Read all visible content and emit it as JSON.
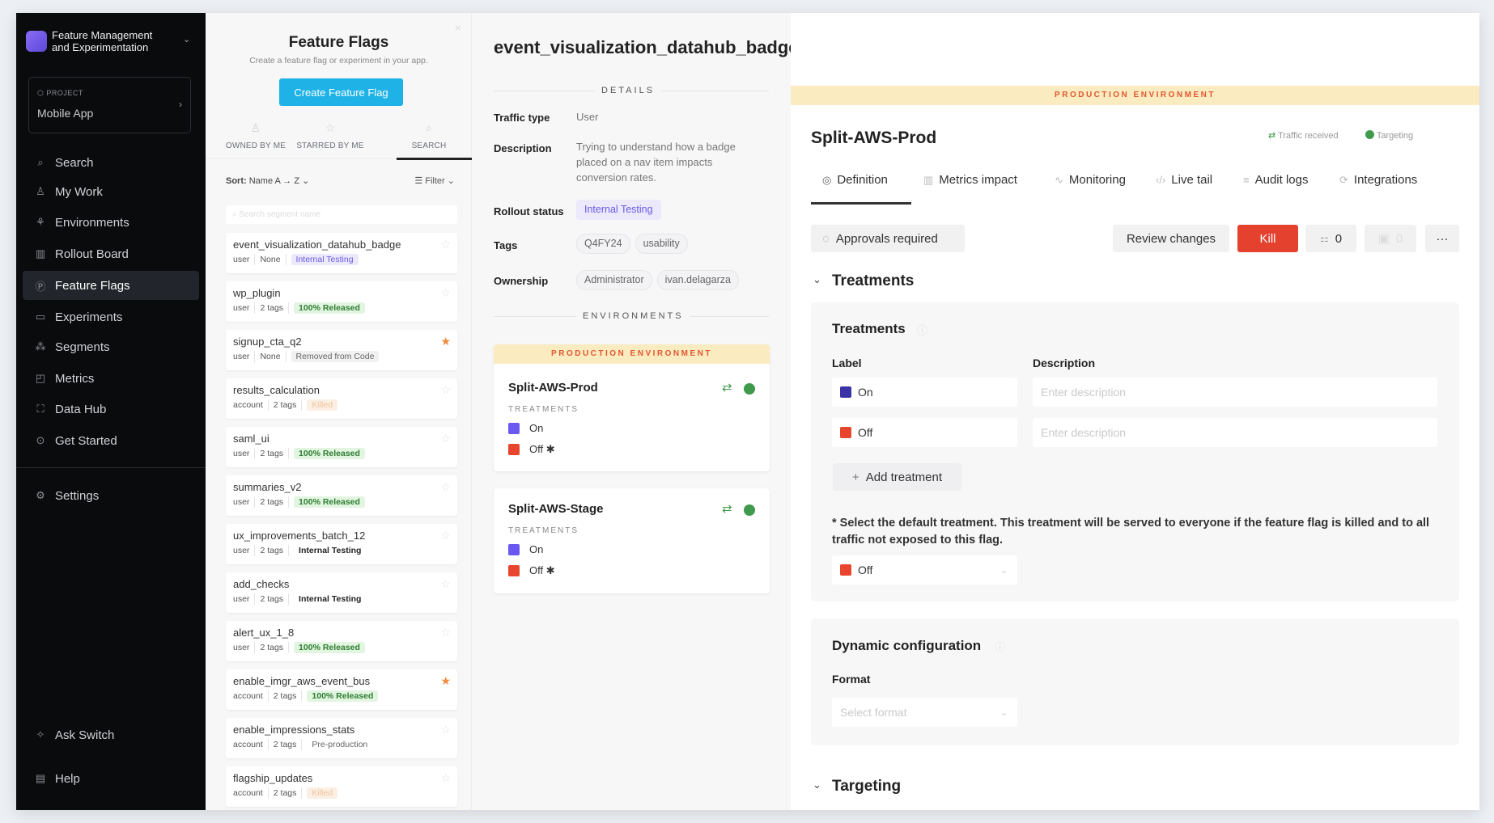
{
  "sidebar": {
    "app_title_line1": "Feature Management",
    "app_title_line2": "and Experimentation",
    "project_label": "PROJECT",
    "project_name": "Mobile App",
    "items": [
      {
        "label": "Search",
        "icon": "search-icon",
        "glyph": "⌕"
      },
      {
        "label": "My Work",
        "icon": "user-icon",
        "glyph": "♙"
      },
      {
        "label": "Environments",
        "icon": "environments-icon",
        "glyph": "⚘"
      },
      {
        "label": "Rollout Board",
        "icon": "board-icon",
        "glyph": "▥"
      },
      {
        "label": "Feature Flags",
        "icon": "flag-icon",
        "glyph": "Ⓟ",
        "active": true
      },
      {
        "label": "Experiments",
        "icon": "experiments-icon",
        "glyph": "▭"
      },
      {
        "label": "Segments",
        "icon": "segments-icon",
        "glyph": "⁂"
      },
      {
        "label": "Metrics",
        "icon": "metrics-icon",
        "glyph": "◰"
      },
      {
        "label": "Data Hub",
        "icon": "data-hub-icon",
        "glyph": "⛶"
      },
      {
        "label": "Get Started",
        "icon": "play-icon",
        "glyph": "⊙"
      }
    ],
    "settings": "Settings",
    "ask": "Ask Switch",
    "help": "Help"
  },
  "list": {
    "title": "Feature Flags",
    "subtitle": "Create a feature flag or experiment in your app.",
    "create_button": "Create Feature Flag",
    "tabs": [
      "OWNED BY ME",
      "STARRED BY ME",
      "SEARCH"
    ],
    "sort_label": "Sort:",
    "sort_value": "Name  A → Z",
    "filter": "Filter",
    "search_placeholder": "Search segment name",
    "flags": [
      {
        "name": "event_visualization_datahub_badge",
        "type": "user",
        "tags": "None",
        "status": "Internal Testing",
        "style": "internal",
        "starred": false
      },
      {
        "name": "wp_plugin",
        "type": "user",
        "tags": "2 tags",
        "status": "100% Released",
        "style": "released",
        "starred": false
      },
      {
        "name": "signup_cta_q2",
        "type": "user",
        "tags": "None",
        "status": "Removed from Code",
        "style": "removed",
        "starred": true
      },
      {
        "name": "results_calculation",
        "type": "account",
        "tags": "2 tags",
        "status": "Killed",
        "style": "killed",
        "starred": false
      },
      {
        "name": "saml_ui",
        "type": "user",
        "tags": "2 tags",
        "status": "100% Released",
        "style": "released",
        "starred": false
      },
      {
        "name": "summaries_v2",
        "type": "user",
        "tags": "2 tags",
        "status": "100% Released",
        "style": "released",
        "starred": false
      },
      {
        "name": "ux_improvements_batch_12",
        "type": "user",
        "tags": "2 tags",
        "status": "Internal Testing",
        "style": "internal-plain",
        "starred": false
      },
      {
        "name": "add_checks",
        "type": "user",
        "tags": "2 tags",
        "status": "Internal Testing",
        "style": "internal-plain",
        "starred": false
      },
      {
        "name": "alert_ux_1_8",
        "type": "user",
        "tags": "2 tags",
        "status": "100% Released",
        "style": "released",
        "starred": false
      },
      {
        "name": "enable_imgr_aws_event_bus",
        "type": "account",
        "tags": "2 tags",
        "status": "100% Released",
        "style": "released",
        "starred": true
      },
      {
        "name": "enable_impressions_stats",
        "type": "account",
        "tags": "2 tags",
        "status": "Pre-production",
        "style": "preprod",
        "starred": false
      },
      {
        "name": "flagship_updates",
        "type": "account",
        "tags": "2 tags",
        "status": "Killed",
        "style": "killed",
        "starred": false
      }
    ]
  },
  "details": {
    "flag_name": "event_visualization_datahub_badge",
    "section": "DETAILS",
    "traffic_type_label": "Traffic type",
    "traffic_type": "User",
    "description_label": "Description",
    "description": "Trying to understand how a badge placed on a nav item impacts conversion rates.",
    "rollout_label": "Rollout status",
    "rollout": "Internal Testing",
    "tags_label": "Tags",
    "tags": [
      "Q4FY24",
      "usability"
    ],
    "ownership_label": "Ownership",
    "owners": [
      "Administrator",
      "ivan.delagarza"
    ],
    "env_section": "ENVIRONMENTS",
    "prod_banner": "PRODUCTION ENVIRONMENT",
    "envs": [
      {
        "name": "Split-AWS-Prod",
        "treatments_label": "TREATMENTS",
        "on": "On",
        "off": "Off ✱"
      },
      {
        "name": "Split-AWS-Stage",
        "treatments_label": "TREATMENTS",
        "on": "On",
        "off": "Off ✱"
      }
    ]
  },
  "panel": {
    "banner": "PRODUCTION ENVIRONMENT",
    "env_name": "Split-AWS-Prod",
    "traffic": "Traffic received",
    "targeting": "Targeting",
    "tabs": [
      "Definition",
      "Metrics impact",
      "Monitoring",
      "Live tail",
      "Audit logs",
      "Integrations"
    ],
    "approvals": "Approvals required",
    "review": "Review changes",
    "kill": "Kill",
    "count": "0",
    "disabled_count": "0",
    "treatments_section": "Treatments",
    "treatments_box_title": "Treatments",
    "label_header": "Label",
    "description_header": "Description",
    "rows": [
      {
        "label": "On",
        "placeholder": "Enter description"
      },
      {
        "label": "Off",
        "placeholder": "Enter description"
      }
    ],
    "add_treatment": "Add treatment",
    "default_note": "* Select the default treatment. This treatment will be served to everyone if the feature flag is killed and to all traffic not exposed to this flag.",
    "default_value": "Off",
    "dyn_title": "Dynamic configuration",
    "format_label": "Format",
    "format_placeholder": "Select format"
  },
  "colors": {
    "accent": "#1eb2e6",
    "kill": "#e5412f",
    "on": "#6b58f0",
    "off": "#e8452e",
    "active": "#3f9a4b",
    "banner": "#fbebc0"
  }
}
